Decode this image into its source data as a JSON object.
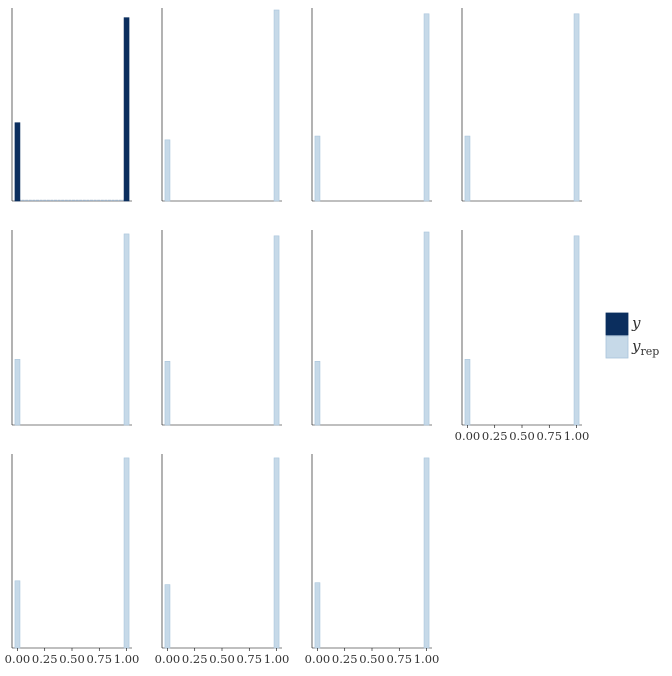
{
  "chart_data": {
    "type": "bar",
    "description_text": "",
    "xlim": [
      -0.05,
      1.05
    ],
    "x_ticks": [
      "0.00",
      "0.25",
      "0.50",
      "0.75",
      "1.00"
    ],
    "bin_centers": [
      0,
      1
    ],
    "colors": {
      "y": "#0b2e5e",
      "yrep": "#c6d9e8",
      "yrep_edge": "#a8c4db",
      "axis": "#000000"
    },
    "legend": {
      "placement": "right",
      "items": [
        {
          "key": "y",
          "label": "y",
          "sub": ""
        },
        {
          "key": "yrep",
          "label": "y",
          "sub": "rep"
        }
      ]
    },
    "panels": [
      {
        "series": "y",
        "values": [
          0.41,
          0.96
        ],
        "ymax": 1.0,
        "x_labels": false
      },
      {
        "series": "yrep",
        "values": [
          0.32,
          1.0
        ],
        "ymax": 1.0,
        "x_labels": false
      },
      {
        "series": "yrep",
        "values": [
          0.34,
          0.98
        ],
        "ymax": 1.0,
        "x_labels": false
      },
      {
        "series": "yrep",
        "values": [
          0.34,
          0.98
        ],
        "ymax": 1.0,
        "x_labels": false
      },
      {
        "series": "yrep",
        "values": [
          0.34,
          0.99
        ],
        "ymax": 1.0,
        "x_labels": false
      },
      {
        "series": "yrep",
        "values": [
          0.33,
          0.98
        ],
        "ymax": 1.0,
        "x_labels": false
      },
      {
        "series": "yrep",
        "values": [
          0.33,
          1.0
        ],
        "ymax": 1.0,
        "x_labels": false
      },
      {
        "series": "yrep",
        "values": [
          0.34,
          0.98
        ],
        "ymax": 1.0,
        "x_labels": true
      },
      {
        "series": "yrep",
        "values": [
          0.35,
          0.99
        ],
        "ymax": 1.0,
        "x_labels": true
      },
      {
        "series": "yrep",
        "values": [
          0.33,
          0.99
        ],
        "ymax": 1.0,
        "x_labels": true
      },
      {
        "series": "yrep",
        "values": [
          0.34,
          0.99
        ],
        "ymax": 1.0,
        "x_labels": true
      }
    ]
  }
}
